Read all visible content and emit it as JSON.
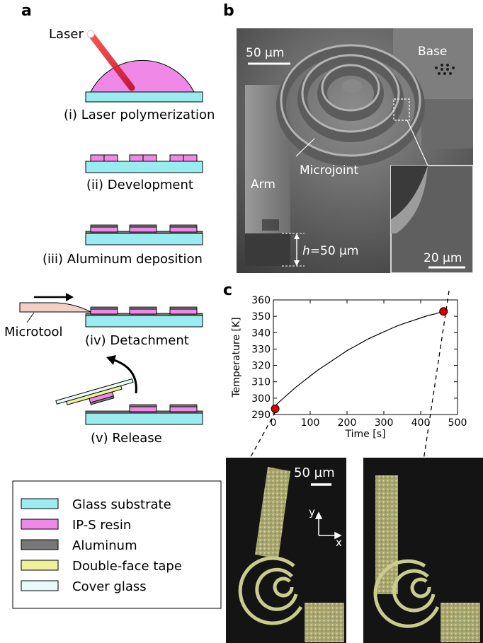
{
  "panels": {
    "a": {
      "letter": "a",
      "laser_label": "Laser",
      "steps": [
        "(i) Laser polymerization",
        "(ii) Development",
        "(iii) Aluminum deposition",
        "(iv) Detachment",
        "(v) Release"
      ],
      "microtool_label": "Microtool",
      "legend": [
        {
          "label": "Glass substrate",
          "color": "#99ecef"
        },
        {
          "label": "IP-S resin",
          "color": "#ef88e6"
        },
        {
          "label": "Aluminum",
          "color": "#777777"
        },
        {
          "label": "Double-face tape",
          "color": "#eef19a"
        },
        {
          "label": "Cover glass",
          "color": "#eafafb"
        }
      ]
    },
    "b": {
      "letter": "b",
      "scalebar_main": "50 µm",
      "label_base": "Base",
      "label_microjoint": "Microjoint",
      "label_arm": "Arm",
      "height_label_h": "h",
      "height_label_value": "=50 µm",
      "scalebar_inset": "20 µm"
    },
    "c": {
      "letter": "c",
      "scalebar": "50 µm",
      "axis_y_letter": "y",
      "axis_x_letter": "x"
    }
  },
  "chart_data": {
    "type": "line",
    "xlabel": "Time [s]",
    "ylabel": "Temperature [K]",
    "xlim": [
      0,
      500
    ],
    "ylim": [
      290,
      360
    ],
    "xticks": [
      0,
      100,
      200,
      300,
      400,
      500
    ],
    "yticks": [
      290,
      300,
      310,
      320,
      330,
      340,
      350,
      360
    ],
    "grid": false,
    "series": [
      {
        "x": [
          0,
          10,
          20,
          30,
          40,
          50,
          60,
          80,
          100,
          120,
          140,
          160,
          180,
          200,
          220,
          240,
          260,
          280,
          300,
          320,
          340,
          360,
          380,
          400,
          420,
          440,
          460
        ],
        "y": [
          293.5,
          296.5,
          298.5,
          300.5,
          302.5,
          304.5,
          306.5,
          310,
          313.5,
          317,
          320,
          323,
          326,
          329,
          331.5,
          334,
          336.5,
          338.5,
          340.5,
          342.5,
          344.5,
          346,
          347.5,
          349,
          350.5,
          351.5,
          353
        ]
      }
    ],
    "markers": [
      {
        "x": 5,
        "y": 293.5
      },
      {
        "x": 462,
        "y": 353
      }
    ]
  }
}
